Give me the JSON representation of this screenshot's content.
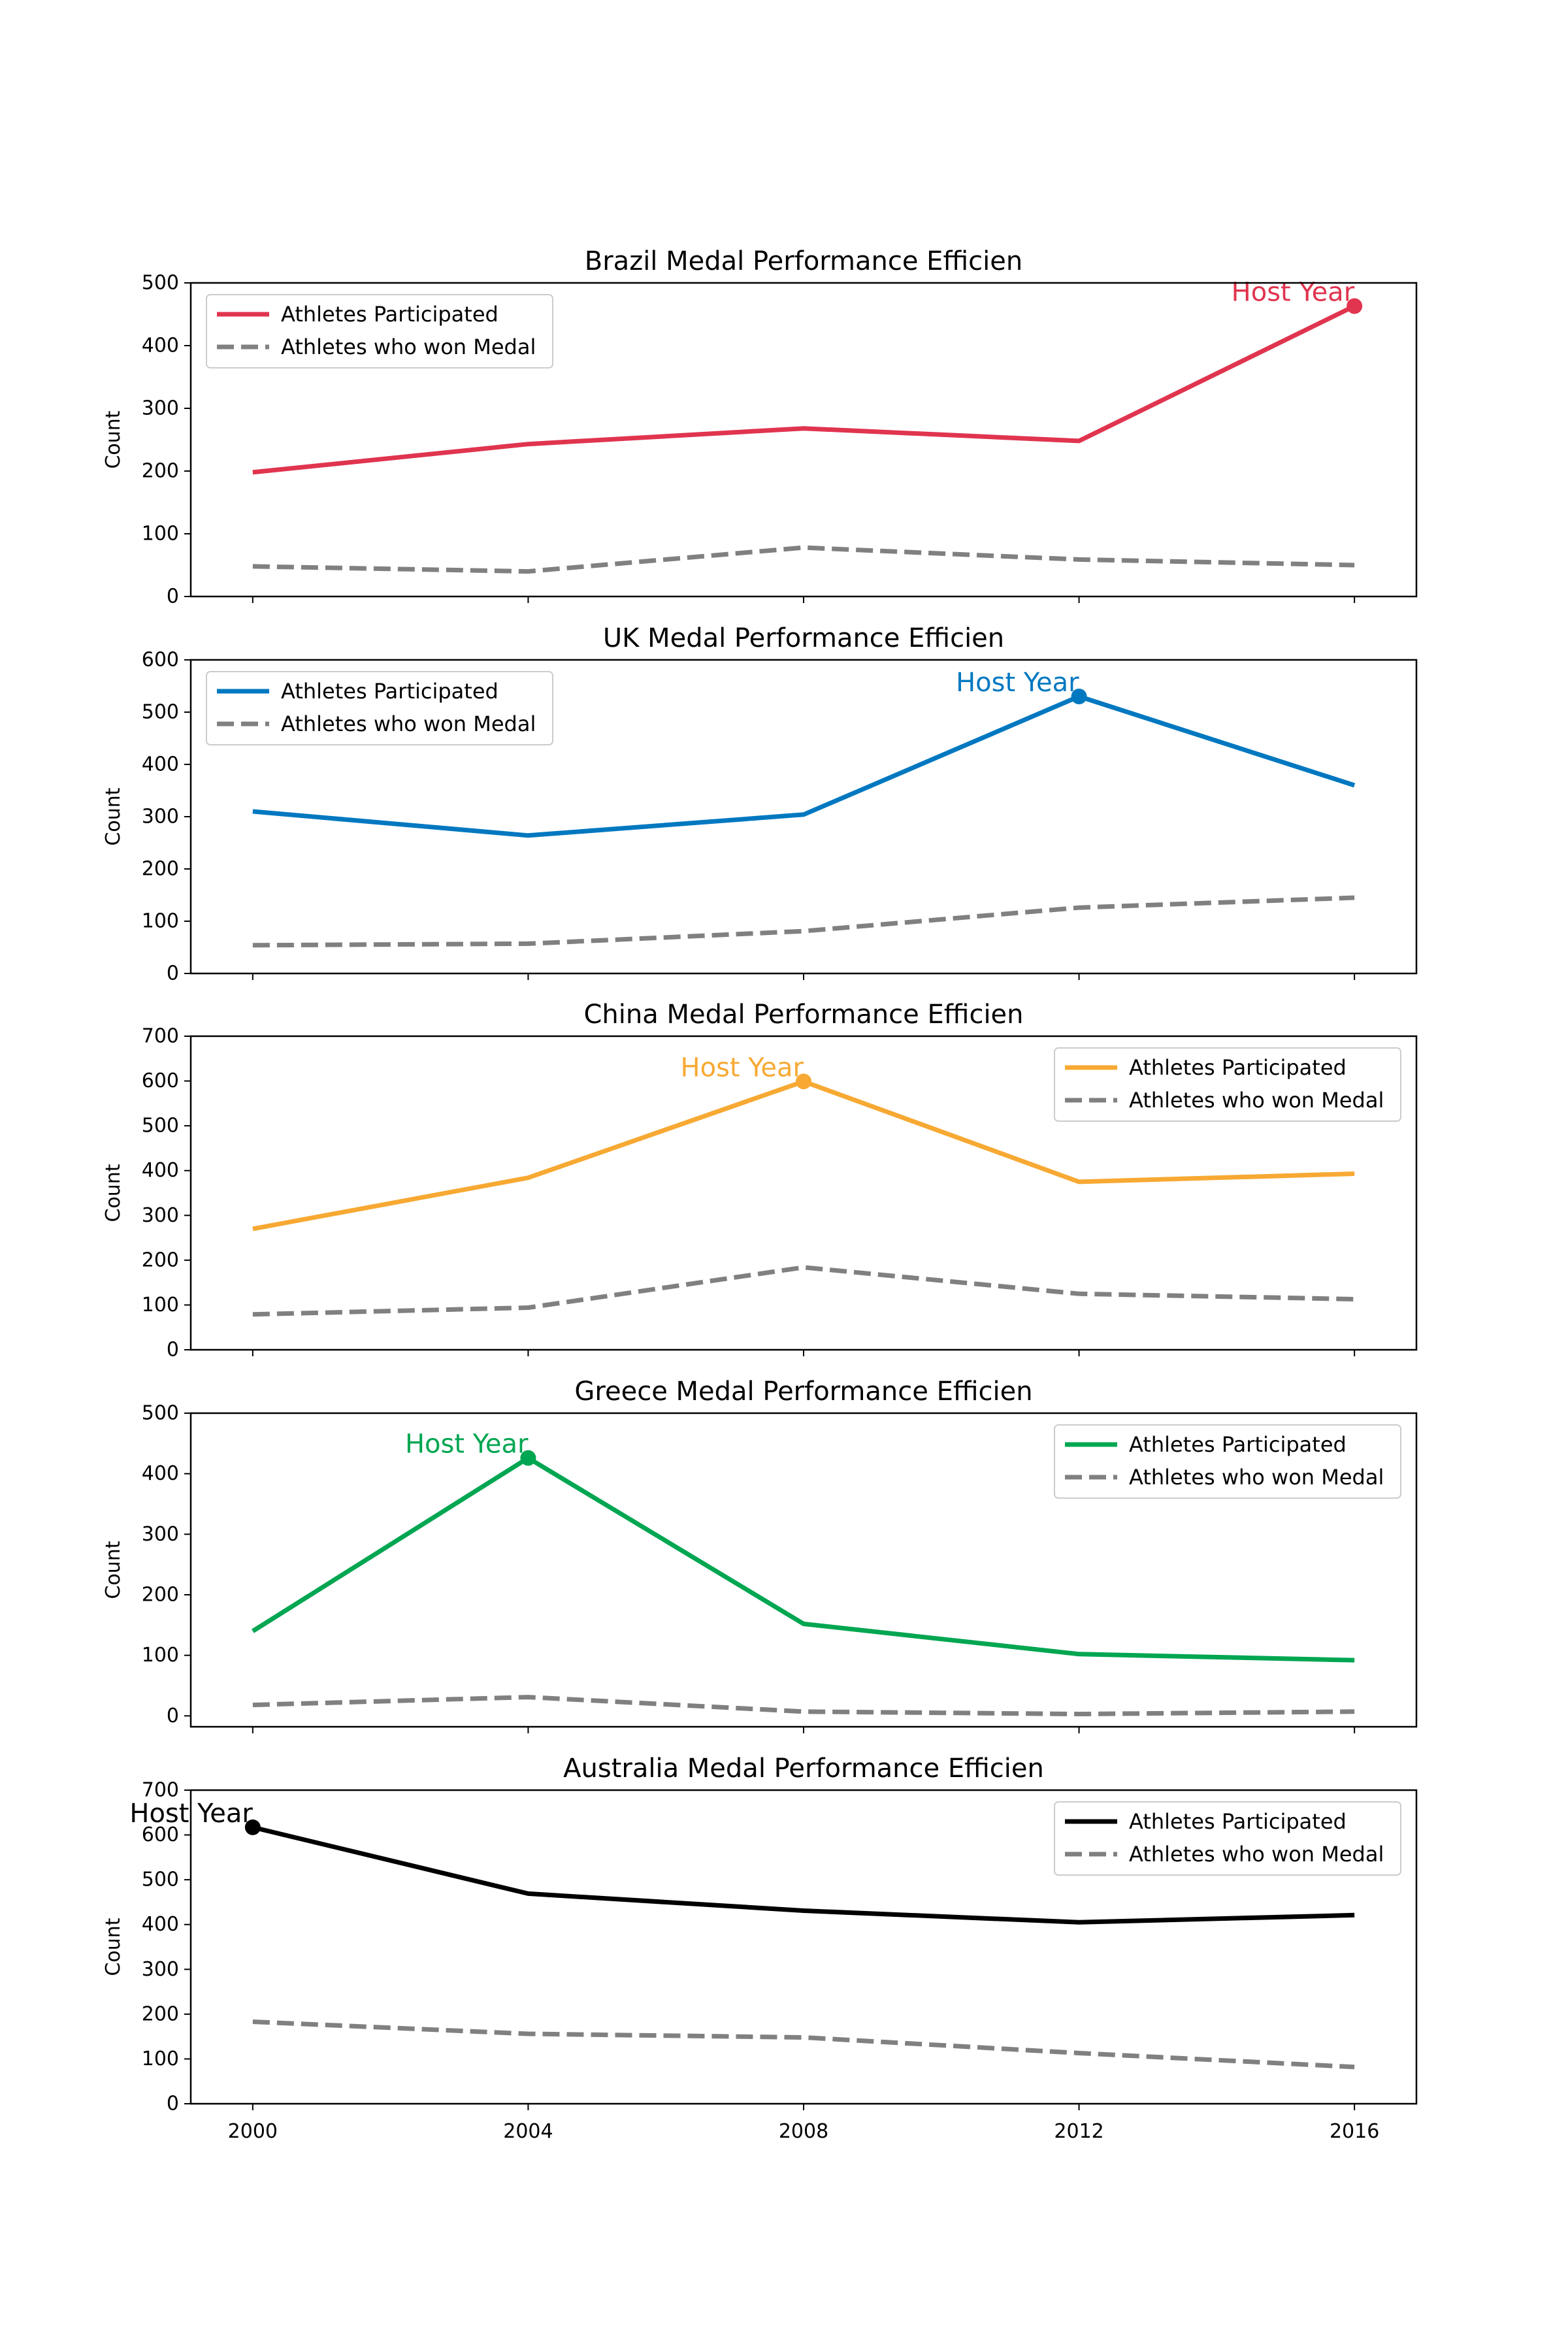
{
  "chart_data": [
    {
      "type": "line",
      "title": "Brazil Medal Performance Efficien",
      "ylabel": "Count",
      "xlabel": "",
      "x": [
        2000,
        2004,
        2008,
        2012,
        2016
      ],
      "ylim": [
        0,
        500
      ],
      "yticks": [
        0,
        100,
        200,
        300,
        400,
        500
      ],
      "color": "#e0344f",
      "legend_position": "upper left",
      "series": [
        {
          "name": "Athletes Participated",
          "values": [
            198,
            243,
            268,
            248,
            463
          ],
          "style": "solid",
          "color": "#e0344f"
        },
        {
          "name": "Athletes who won Medal",
          "values": [
            48,
            40,
            78,
            59,
            50
          ],
          "style": "dashed",
          "color": "#808080"
        }
      ],
      "annotation": {
        "text": "Host Year",
        "x": 2016,
        "y": 463
      }
    },
    {
      "type": "line",
      "title": "UK Medal Performance Efficien",
      "ylabel": "Count",
      "xlabel": "",
      "x": [
        2000,
        2004,
        2008,
        2012,
        2016
      ],
      "ylim": [
        0,
        600
      ],
      "yticks": [
        0,
        100,
        200,
        300,
        400,
        500,
        600
      ],
      "color": "#0078c0",
      "legend_position": "upper left",
      "series": [
        {
          "name": "Athletes Participated",
          "values": [
            310,
            264,
            304,
            530,
            360
          ],
          "style": "solid",
          "color": "#0078c0"
        },
        {
          "name": "Athletes who won Medal",
          "values": [
            54,
            57,
            81,
            126,
            145
          ],
          "style": "dashed",
          "color": "#808080"
        }
      ],
      "annotation": {
        "text": "Host Year",
        "x": 2012,
        "y": 530
      }
    },
    {
      "type": "line",
      "title": "China Medal Performance Efficien",
      "ylabel": "Count",
      "xlabel": "",
      "x": [
        2000,
        2004,
        2008,
        2012,
        2016
      ],
      "ylim": [
        0,
        700
      ],
      "yticks": [
        0,
        100,
        200,
        300,
        400,
        500,
        600,
        700
      ],
      "color": "#f7a933",
      "legend_position": "upper right",
      "series": [
        {
          "name": "Athletes Participated",
          "values": [
            270,
            384,
            599,
            375,
            393
          ],
          "style": "solid",
          "color": "#f7a933"
        },
        {
          "name": "Athletes who won Medal",
          "values": [
            79,
            94,
            184,
            125,
            113
          ],
          "style": "dashed",
          "color": "#808080"
        }
      ],
      "annotation": {
        "text": "Host Year",
        "x": 2008,
        "y": 599
      }
    },
    {
      "type": "line",
      "title": "Greece Medal Performance Efficien",
      "ylabel": "Count",
      "xlabel": "",
      "x": [
        2000,
        2004,
        2008,
        2012,
        2016
      ],
      "ylim": [
        -18,
        500
      ],
      "yticks": [
        0,
        100,
        200,
        300,
        400,
        500
      ],
      "color": "#00a651",
      "legend_position": "upper right",
      "series": [
        {
          "name": "Athletes Participated",
          "values": [
            140,
            426,
            152,
            102,
            92
          ],
          "style": "solid",
          "color": "#00a651"
        },
        {
          "name": "Athletes who won Medal",
          "values": [
            18,
            31,
            7,
            3,
            7
          ],
          "style": "dashed",
          "color": "#808080"
        }
      ],
      "annotation": {
        "text": "Host Year",
        "x": 2004,
        "y": 426
      }
    },
    {
      "type": "line",
      "title": "Australia Medal Performance Efficien",
      "ylabel": "Count",
      "xlabel": "",
      "x": [
        2000,
        2004,
        2008,
        2012,
        2016
      ],
      "xticks": [
        "2000",
        "2004",
        "2008",
        "2012",
        "2016"
      ],
      "ylim": [
        0,
        700
      ],
      "yticks": [
        0,
        100,
        200,
        300,
        400,
        500,
        600,
        700
      ],
      "color": "#000000",
      "legend_position": "upper right",
      "series": [
        {
          "name": "Athletes Participated",
          "values": [
            617,
            469,
            431,
            405,
            421
          ],
          "style": "solid",
          "color": "#000000"
        },
        {
          "name": "Athletes who won Medal",
          "values": [
            183,
            156,
            148,
            113,
            82
          ],
          "style": "dashed",
          "color": "#808080"
        }
      ],
      "annotation": {
        "text": "Host Year",
        "x": 2000,
        "y": 617
      }
    }
  ]
}
